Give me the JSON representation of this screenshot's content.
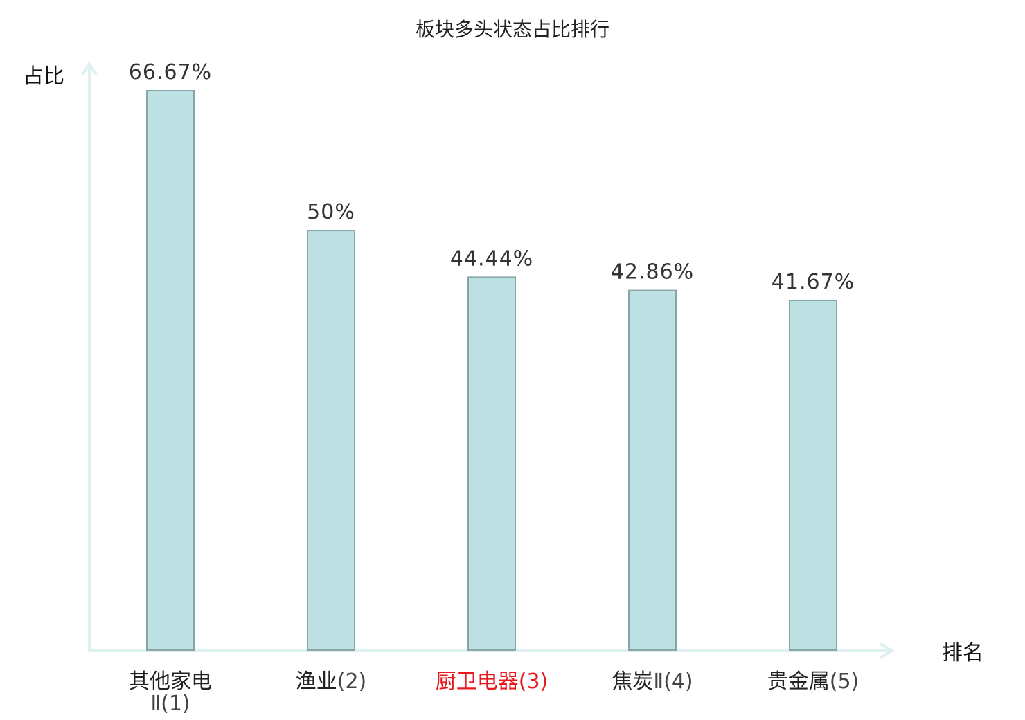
{
  "chart_data": {
    "type": "bar",
    "title": "板块多头状态占比排行",
    "ylabel": "占比",
    "xlabel": "排名",
    "categories": [
      {
        "name": "其他家电",
        "suffix": "Ⅱ",
        "rank": "(1)",
        "highlight": false
      },
      {
        "name": "渔业",
        "suffix": "",
        "rank": "(2)",
        "highlight": false
      },
      {
        "name": "厨卫电器",
        "suffix": "",
        "rank": "(3)",
        "highlight": true
      },
      {
        "name": "焦炭",
        "suffix": "Ⅱ",
        "rank": "(4)",
        "highlight": false
      },
      {
        "name": "贵金属",
        "suffix": "",
        "rank": "(5)",
        "highlight": false
      }
    ],
    "values": [
      66.67,
      50,
      44.44,
      42.86,
      41.67
    ],
    "value_labels": [
      "66.67%",
      "50%",
      "44.44%",
      "42.86%",
      "41.67%"
    ],
    "ylim": [
      0,
      66.67
    ],
    "grid": false,
    "colors": {
      "bar_fill": "#bde0e2",
      "bar_stroke": "#86a6a8",
      "axis": "#dff1ef",
      "label": "#222222",
      "highlight": "#e8191d"
    }
  }
}
